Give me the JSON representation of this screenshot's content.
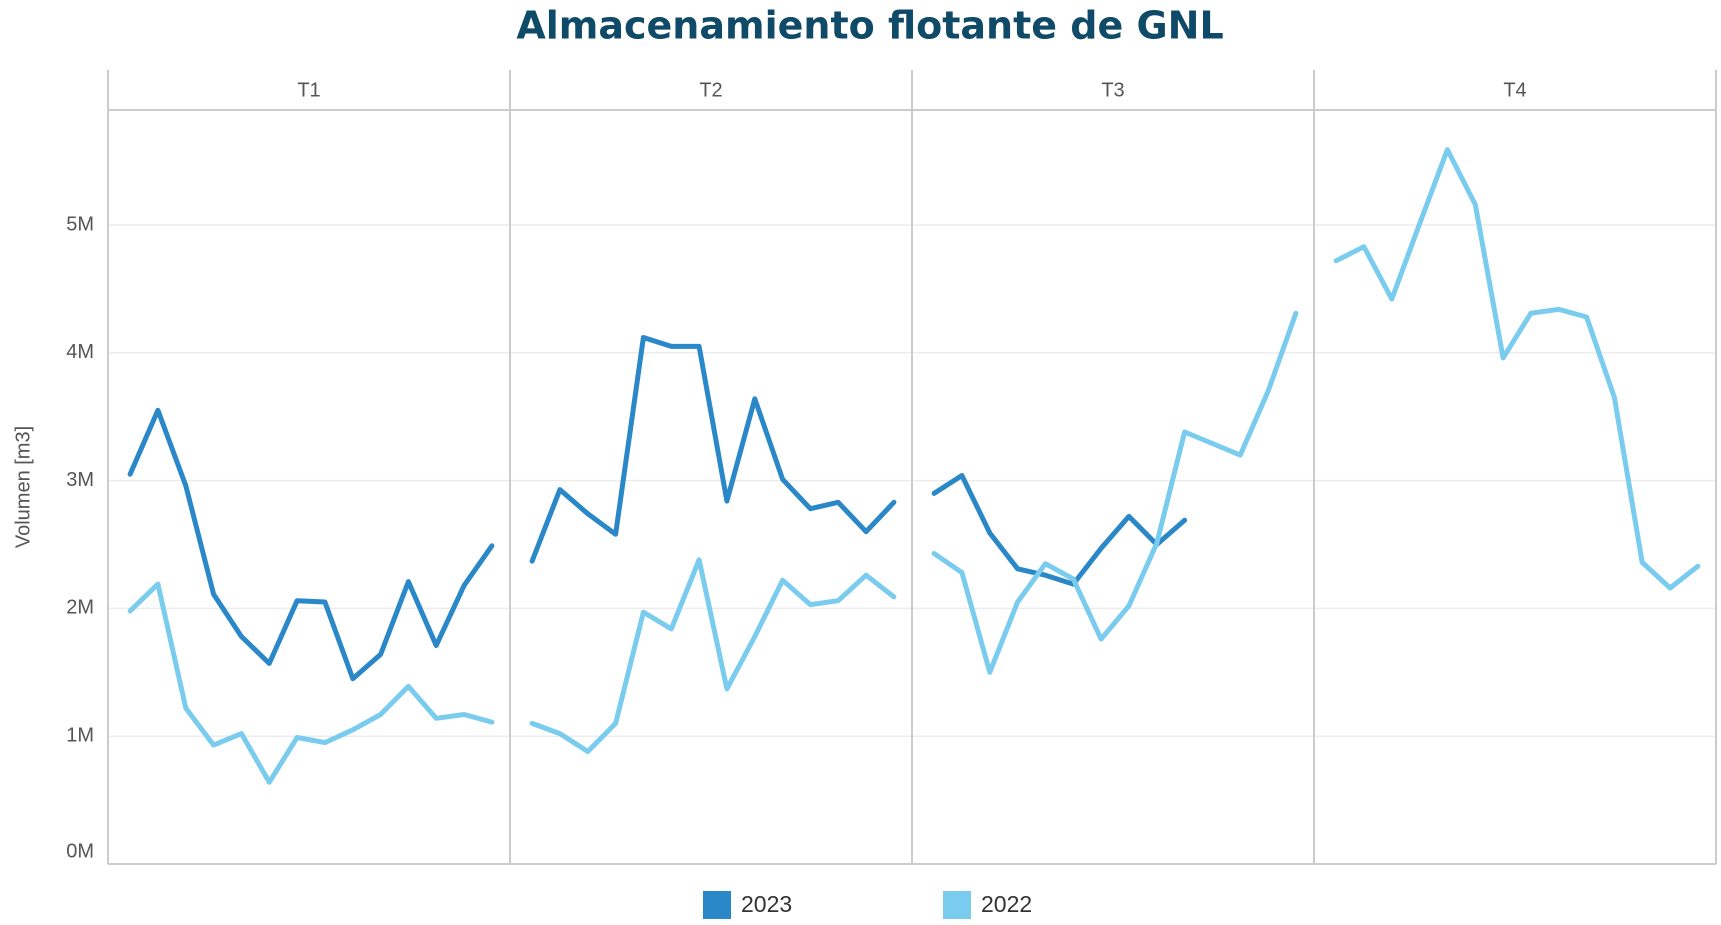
{
  "title": "Almacenamiento flotante de GNL",
  "y_label": "Volumen [m3]",
  "chart_data": [
    {
      "type": "line",
      "title": "T1",
      "ylim": [
        0,
        5900000
      ],
      "yticks": [
        {
          "value": 0,
          "label": "0M"
        },
        {
          "value": 1000000,
          "label": "1M"
        },
        {
          "value": 2000000,
          "label": "2M"
        },
        {
          "value": 3000000,
          "label": "3M"
        },
        {
          "value": 4000000,
          "label": "4M"
        },
        {
          "value": 5000000,
          "label": "5M"
        }
      ],
      "grid": true,
      "series": [
        {
          "name": "2023",
          "color": "#2a88c9",
          "values": [
            3050000,
            3550000,
            2960000,
            2110000,
            1780000,
            1570000,
            2060000,
            2050000,
            1450000,
            1640000,
            2210000,
            1710000,
            2180000,
            2490000
          ]
        },
        {
          "name": "2022",
          "color": "#7accee",
          "values": [
            1980000,
            2190000,
            1220000,
            930000,
            1020000,
            640000,
            990000,
            950000,
            1050000,
            1170000,
            1390000,
            1140000,
            1170000,
            1110000
          ]
        }
      ]
    },
    {
      "type": "line",
      "title": "T2",
      "ylim": [
        0,
        5900000
      ],
      "series": [
        {
          "name": "2023",
          "color": "#2a88c9",
          "values": [
            2370000,
            2930000,
            2740000,
            2580000,
            4120000,
            4050000,
            4050000,
            2840000,
            3640000,
            3010000,
            2780000,
            2830000,
            2600000,
            2830000
          ]
        },
        {
          "name": "2022",
          "color": "#7accee",
          "values": [
            1100000,
            1020000,
            880000,
            1100000,
            1970000,
            1840000,
            2380000,
            1370000,
            1780000,
            2220000,
            2030000,
            2060000,
            2260000,
            2090000
          ]
        }
      ]
    },
    {
      "type": "line",
      "title": "T3",
      "ylim": [
        0,
        5900000
      ],
      "series": [
        {
          "name": "2023",
          "color": "#2a88c9",
          "values": [
            2900000,
            3040000,
            2590000,
            2310000,
            2260000,
            2190000,
            2470000,
            2720000,
            2500000,
            2690000,
            null,
            null,
            null,
            null
          ]
        },
        {
          "name": "2022",
          "color": "#7accee",
          "values": [
            2430000,
            2280000,
            1500000,
            2050000,
            2350000,
            2230000,
            1760000,
            2020000,
            2510000,
            3380000,
            3290000,
            3200000,
            3700000,
            4310000
          ]
        }
      ]
    },
    {
      "type": "line",
      "title": "T4",
      "ylim": [
        0,
        5900000
      ],
      "series": [
        {
          "name": "2023",
          "color": "#2a88c9",
          "values": [
            null,
            null,
            null,
            null,
            null,
            null,
            null,
            null,
            null,
            null,
            null,
            null,
            null,
            null
          ]
        },
        {
          "name": "2022",
          "color": "#7accee",
          "values": [
            4720000,
            4830000,
            4420000,
            5010000,
            5590000,
            5160000,
            3960000,
            4310000,
            4340000,
            4280000,
            3650000,
            2360000,
            2160000,
            2330000
          ]
        }
      ]
    }
  ]
}
